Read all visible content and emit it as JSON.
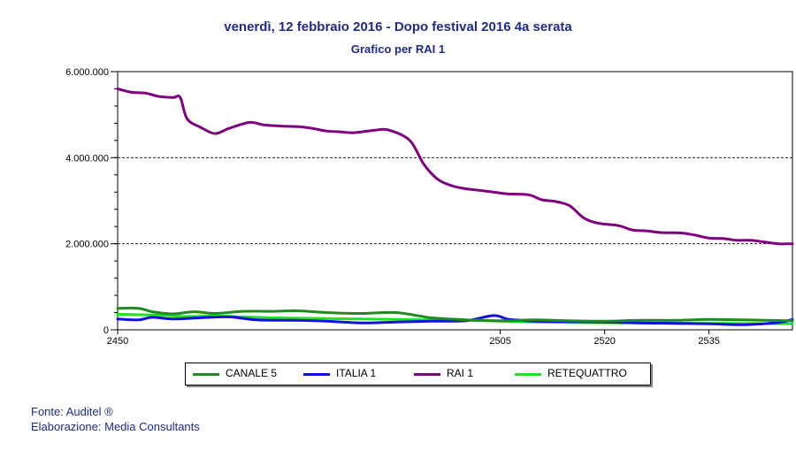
{
  "header": {
    "title": "venerdì, 12 febbraio 2016 - Dopo festival 2016 4a serata",
    "subtitle": "Grafico per RAI 1"
  },
  "chart_data": {
    "type": "line",
    "title": "venerdì, 12 febbraio 2016 - Dopo festival 2016 4a serata",
    "subtitle": "Grafico per RAI 1",
    "xlabel": "",
    "ylabel": "",
    "xlim": [
      2450,
      2547
    ],
    "ylim": [
      0,
      6000000
    ],
    "y_ticks": [
      0,
      2000000,
      4000000,
      6000000
    ],
    "y_tick_labels": [
      "0",
      "2.000.000",
      "4.000.000",
      "6.000.000"
    ],
    "x_ticks": [
      2450,
      2505,
      2520,
      2535
    ],
    "x_tick_labels": [
      "2450",
      "2505",
      "2520",
      "2535"
    ],
    "grid": "horizontal dashed at 2.000.000 and 4.000.000",
    "legend_position": "bottom",
    "series": [
      {
        "name": "CANALE 5",
        "color": "#1f8a1f",
        "x": [
          2450,
          2453,
          2455,
          2458,
          2461,
          2464,
          2468,
          2472,
          2476,
          2480,
          2485,
          2490,
          2495,
          2499,
          2502,
          2506,
          2510,
          2515,
          2520,
          2525,
          2530,
          2535,
          2540,
          2547
        ],
        "y": [
          500000,
          500000,
          420000,
          370000,
          420000,
          380000,
          430000,
          430000,
          440000,
          400000,
          380000,
          400000,
          280000,
          240000,
          220000,
          210000,
          230000,
          210000,
          200000,
          220000,
          220000,
          240000,
          230000,
          210000
        ]
      },
      {
        "name": "ITALIA 1",
        "color": "#1010e0",
        "x": [
          2450,
          2453,
          2455,
          2458,
          2462,
          2466,
          2470,
          2475,
          2480,
          2485,
          2490,
          2495,
          2500,
          2504,
          2506,
          2508,
          2510,
          2515,
          2520,
          2525,
          2530,
          2535,
          2540,
          2545,
          2547
        ],
        "y": [
          250000,
          230000,
          290000,
          250000,
          280000,
          300000,
          230000,
          220000,
          200000,
          160000,
          180000,
          200000,
          210000,
          330000,
          250000,
          220000,
          200000,
          190000,
          180000,
          160000,
          150000,
          140000,
          120000,
          170000,
          240000
        ]
      },
      {
        "name": "RAI 1",
        "color": "#800080",
        "x": [
          2450,
          2452,
          2454,
          2456,
          2458,
          2459,
          2460,
          2462,
          2464,
          2466,
          2469,
          2471,
          2474,
          2476,
          2478,
          2480,
          2482,
          2484,
          2487,
          2489,
          2492,
          2494,
          2496,
          2498,
          2500,
          2502,
          2504,
          2506,
          2509,
          2511,
          2513,
          2515,
          2517,
          2519,
          2522,
          2524,
          2526,
          2528,
          2531,
          2533,
          2535,
          2537,
          2539,
          2541,
          2543,
          2545,
          2547
        ],
        "y": [
          5600000,
          5520000,
          5500000,
          5420000,
          5400000,
          5400000,
          4900000,
          4700000,
          4560000,
          4680000,
          4820000,
          4760000,
          4730000,
          4720000,
          4680000,
          4620000,
          4600000,
          4580000,
          4640000,
          4640000,
          4400000,
          3850000,
          3500000,
          3350000,
          3280000,
          3240000,
          3200000,
          3160000,
          3140000,
          3020000,
          2980000,
          2880000,
          2600000,
          2480000,
          2420000,
          2320000,
          2300000,
          2260000,
          2250000,
          2200000,
          2130000,
          2120000,
          2080000,
          2080000,
          2040000,
          2000000,
          2000000
        ]
      },
      {
        "name": "RETEQUATTRO",
        "color": "#22e022",
        "x": [
          2450,
          2453,
          2456,
          2460,
          2464,
          2468,
          2472,
          2476,
          2480,
          2485,
          2490,
          2495,
          2500,
          2505,
          2510,
          2515,
          2520,
          2525,
          2530,
          2535,
          2540,
          2547
        ],
        "y": [
          360000,
          350000,
          340000,
          310000,
          320000,
          300000,
          280000,
          270000,
          260000,
          250000,
          240000,
          230000,
          220000,
          200000,
          180000,
          170000,
          165000,
          160000,
          155000,
          150000,
          145000,
          140000
        ]
      }
    ]
  },
  "legend": {
    "items": [
      {
        "label": "CANALE 5",
        "color": "#1f8a1f"
      },
      {
        "label": "ITALIA 1",
        "color": "#1010e0"
      },
      {
        "label": "RAI 1",
        "color": "#800080"
      },
      {
        "label": "RETEQUATTRO",
        "color": "#22e022"
      }
    ]
  },
  "footer": {
    "source": "Fonte: Auditel ®",
    "elaboration": "Elaborazione: Media Consultants"
  }
}
